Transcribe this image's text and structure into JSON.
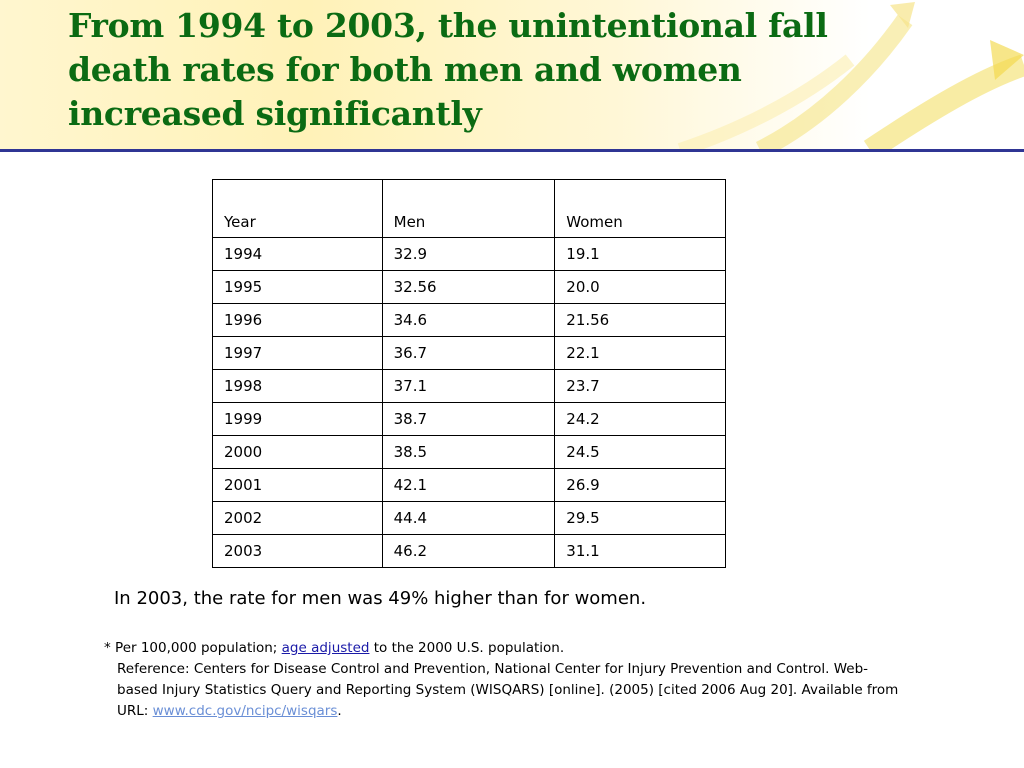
{
  "slide": {
    "title": "From 1994 to 2003, the unintentional fall death rates for both men and women increased significantly"
  },
  "table": {
    "headers": [
      "Year",
      "Men",
      "Women"
    ],
    "rows": [
      [
        "1994",
        "32.9",
        "19.1"
      ],
      [
        "1995",
        "32.56",
        "20.0"
      ],
      [
        "1996",
        "34.6",
        "21.56"
      ],
      [
        "1997",
        "36.7",
        "22.1"
      ],
      [
        "1998",
        "37.1",
        "23.7"
      ],
      [
        "1999",
        "38.7",
        "24.2"
      ],
      [
        "2000",
        "38.5",
        "24.5"
      ],
      [
        "2001",
        "42.1",
        "26.9"
      ],
      [
        "2002",
        "44.4",
        "29.5"
      ],
      [
        "2003",
        "46.2",
        "31.1"
      ]
    ]
  },
  "summary": "In 2003, the rate for men was 49% higher than for women.",
  "footnote": {
    "prefix": "* Per 100,000 population; ",
    "link_text": "age adjusted",
    "suffix": " to the 2000 U.S. population.",
    "reference": "Reference: Centers for Disease Control and Prevention, National Center for Injury Prevention and Control. Web-based Injury Statistics Query and Reporting System (WISQARS) [online]. (2005) [cited 2006 Aug 20]. Available from URL: ",
    "url_text": "www.cdc.gov/ncipc/wisqars",
    "url_suffix": "."
  },
  "colors": {
    "title": "#0b6b13",
    "rule": "#2f3594",
    "link": "#1a1aa8",
    "url": "#6a8fd6"
  }
}
